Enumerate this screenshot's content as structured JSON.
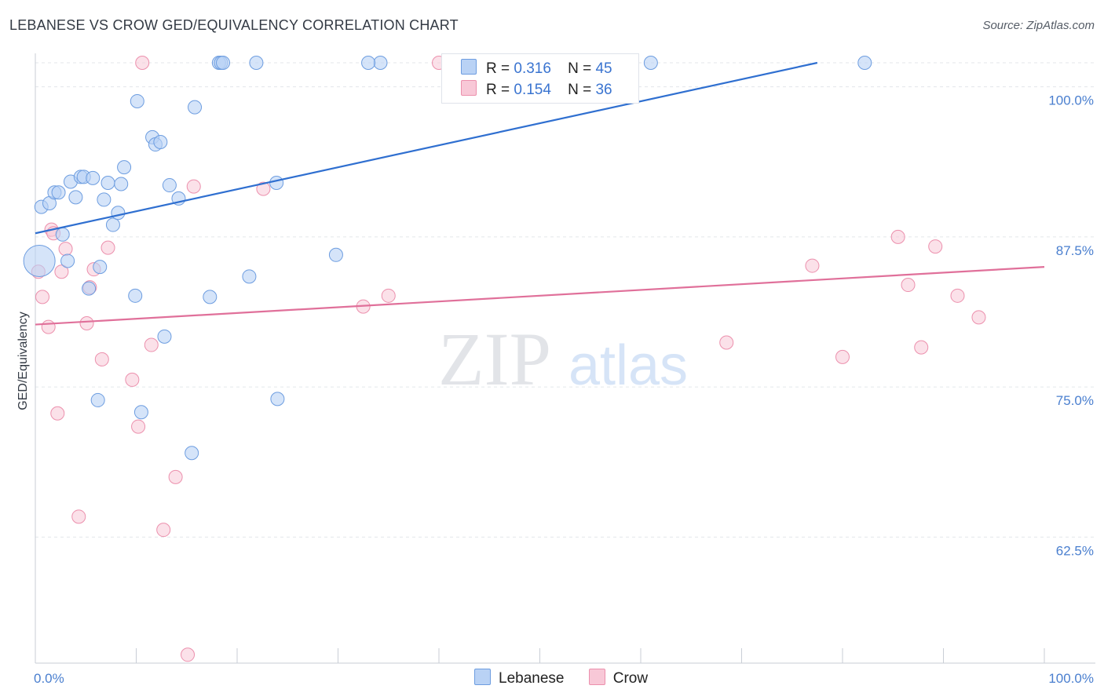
{
  "title": "LEBANESE VS CROW GED/EQUIVALENCY CORRELATION CHART",
  "source": "Source: ZipAtlas.com",
  "watermark": {
    "zip": "ZIP",
    "atlas": "atlas"
  },
  "colors": {
    "lebanese_fill": "#b9d2f5",
    "lebanese_stroke": "#6d9de0",
    "lebanese_line": "#2f6fd0",
    "crow_fill": "#f8c8d7",
    "crow_stroke": "#ec90ad",
    "crow_line": "#e0709a",
    "axis_text": "#4a7fcf",
    "grid": "#e3e6ea"
  },
  "legend": {
    "rows": [
      {
        "r_label": "R =",
        "r_value": "0.316",
        "n_label": "N =",
        "n_value": "45"
      },
      {
        "r_label": "R =",
        "r_value": "0.154",
        "n_label": "N =",
        "n_value": "36"
      }
    ]
  },
  "bottom_legend": [
    "Lebanese",
    "Crow"
  ],
  "chart_data": {
    "type": "scatter",
    "title": "LEBANESE VS CROW GED/EQUIVALENCY CORRELATION CHART",
    "xlabel": "",
    "ylabel": "GED/Equivalency",
    "xlim": [
      0,
      100
    ],
    "ylim": [
      52,
      102
    ],
    "x_tick_labels": [
      "0.0%",
      "100.0%"
    ],
    "y_ticks": [
      62.5,
      75.0,
      87.5,
      100.0
    ],
    "y_tick_labels": [
      "62.5%",
      "75.0%",
      "87.5%",
      "100.0%"
    ],
    "grid": true,
    "legend_position": "top-center",
    "series": [
      {
        "name": "Lebanese",
        "r": 0.316,
        "n": 45,
        "trend": {
          "x": [
            0,
            77.5
          ],
          "y": [
            87.8,
            102.0
          ]
        },
        "points": [
          {
            "x": 0.4,
            "y": 85.5,
            "big": true
          },
          {
            "x": 0.6,
            "y": 90.0
          },
          {
            "x": 1.4,
            "y": 90.3
          },
          {
            "x": 1.9,
            "y": 91.2
          },
          {
            "x": 2.3,
            "y": 91.2
          },
          {
            "x": 2.7,
            "y": 87.7
          },
          {
            "x": 3.2,
            "y": 85.5
          },
          {
            "x": 3.5,
            "y": 92.1
          },
          {
            "x": 4.0,
            "y": 90.8
          },
          {
            "x": 4.5,
            "y": 92.5
          },
          {
            "x": 4.8,
            "y": 92.5
          },
          {
            "x": 5.3,
            "y": 83.2
          },
          {
            "x": 5.7,
            "y": 92.4
          },
          {
            "x": 6.2,
            "y": 73.9
          },
          {
            "x": 6.4,
            "y": 85.0
          },
          {
            "x": 6.8,
            "y": 90.6
          },
          {
            "x": 7.2,
            "y": 92.0
          },
          {
            "x": 7.7,
            "y": 88.5
          },
          {
            "x": 8.2,
            "y": 89.5
          },
          {
            "x": 8.5,
            "y": 91.9
          },
          {
            "x": 8.8,
            "y": 93.3
          },
          {
            "x": 9.9,
            "y": 82.6
          },
          {
            "x": 10.1,
            "y": 98.8
          },
          {
            "x": 10.5,
            "y": 72.9
          },
          {
            "x": 11.6,
            "y": 95.8
          },
          {
            "x": 11.9,
            "y": 95.2
          },
          {
            "x": 12.4,
            "y": 95.4
          },
          {
            "x": 12.8,
            "y": 79.2
          },
          {
            "x": 13.3,
            "y": 91.8
          },
          {
            "x": 14.2,
            "y": 90.7
          },
          {
            "x": 15.5,
            "y": 69.5
          },
          {
            "x": 15.8,
            "y": 98.3
          },
          {
            "x": 18.2,
            "y": 102.0
          },
          {
            "x": 18.4,
            "y": 102.0
          },
          {
            "x": 18.6,
            "y": 102.0
          },
          {
            "x": 17.3,
            "y": 82.5
          },
          {
            "x": 21.2,
            "y": 84.2
          },
          {
            "x": 21.9,
            "y": 102.0
          },
          {
            "x": 23.9,
            "y": 92.0
          },
          {
            "x": 24.0,
            "y": 74.0
          },
          {
            "x": 29.8,
            "y": 86.0
          },
          {
            "x": 34.2,
            "y": 102.0
          },
          {
            "x": 33.0,
            "y": 102.0
          },
          {
            "x": 61.0,
            "y": 102.0
          },
          {
            "x": 82.2,
            "y": 102.0
          }
        ]
      },
      {
        "name": "Crow",
        "r": 0.154,
        "n": 36,
        "trend": {
          "x": [
            0,
            100
          ],
          "y": [
            80.2,
            85.0
          ]
        },
        "points": [
          {
            "x": 0.3,
            "y": 84.6
          },
          {
            "x": 0.7,
            "y": 82.5
          },
          {
            "x": 1.3,
            "y": 80.0
          },
          {
            "x": 1.6,
            "y": 88.1
          },
          {
            "x": 1.8,
            "y": 87.8
          },
          {
            "x": 2.2,
            "y": 72.8
          },
          {
            "x": 2.6,
            "y": 84.6
          },
          {
            "x": 3.0,
            "y": 86.5
          },
          {
            "x": 4.3,
            "y": 64.2
          },
          {
            "x": 5.1,
            "y": 80.3
          },
          {
            "x": 5.4,
            "y": 83.3
          },
          {
            "x": 5.8,
            "y": 84.8
          },
          {
            "x": 6.6,
            "y": 77.3
          },
          {
            "x": 7.2,
            "y": 86.6
          },
          {
            "x": 9.6,
            "y": 75.6
          },
          {
            "x": 10.2,
            "y": 71.7
          },
          {
            "x": 10.6,
            "y": 102.0
          },
          {
            "x": 11.5,
            "y": 78.5
          },
          {
            "x": 12.7,
            "y": 63.1
          },
          {
            "x": 13.9,
            "y": 67.5
          },
          {
            "x": 15.1,
            "y": 52.7
          },
          {
            "x": 15.7,
            "y": 91.7
          },
          {
            "x": 22.6,
            "y": 91.5
          },
          {
            "x": 32.5,
            "y": 81.7
          },
          {
            "x": 35.0,
            "y": 82.6
          },
          {
            "x": 40.0,
            "y": 102.0
          },
          {
            "x": 56.0,
            "y": 102.0
          },
          {
            "x": 68.5,
            "y": 78.7
          },
          {
            "x": 77.0,
            "y": 85.1
          },
          {
            "x": 80.0,
            "y": 77.5
          },
          {
            "x": 85.5,
            "y": 87.5
          },
          {
            "x": 86.5,
            "y": 83.5
          },
          {
            "x": 87.8,
            "y": 78.3
          },
          {
            "x": 89.2,
            "y": 86.7
          },
          {
            "x": 91.4,
            "y": 82.6
          },
          {
            "x": 93.5,
            "y": 80.8
          }
        ]
      }
    ]
  }
}
